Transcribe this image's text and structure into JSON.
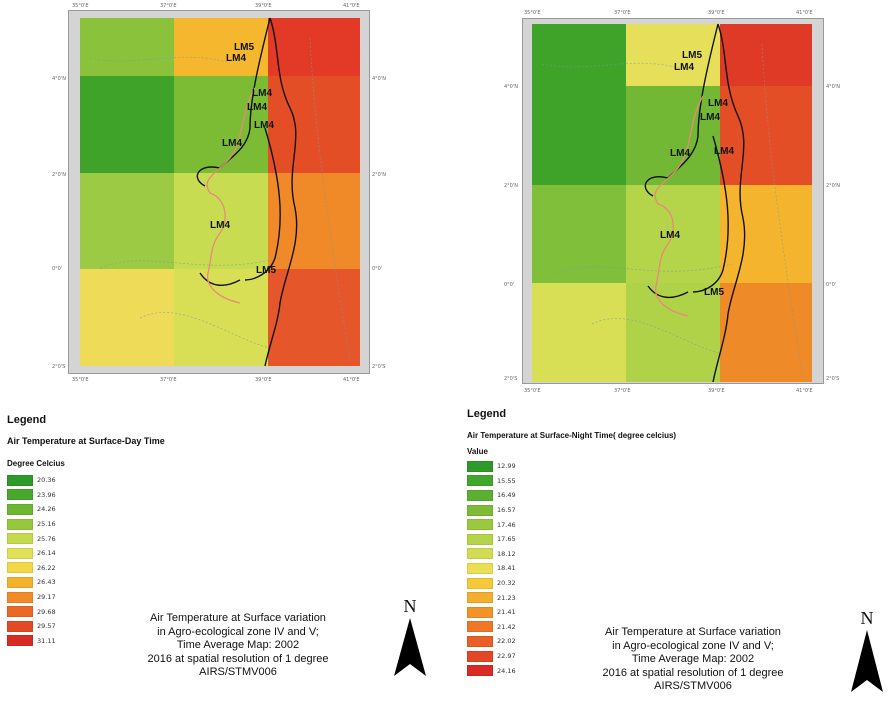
{
  "maps": [
    {
      "id": "day",
      "grid_colors": [
        [
          "#8bc23c",
          "#f4b72e",
          "#e23a27"
        ],
        [
          "#3fa32a",
          "#7cbc35",
          "#e44e27"
        ],
        [
          "#9cca44",
          "#c8dc52",
          "#f08a28"
        ],
        [
          "#eedc58",
          "#d8df54",
          "#e5562a"
        ]
      ],
      "zone_labels": [
        "LM5",
        "LM4",
        "LM4",
        "LM4",
        "LM4",
        "LM4",
        "LM4",
        "LM5"
      ],
      "ticks_top": [
        "35°0'E",
        "37°0'E",
        "39°0'E",
        "41°0'E"
      ],
      "ticks_left": [
        "4°0'N",
        "2°0'N",
        "0°0'",
        "2°0'S",
        "4°0'S"
      ],
      "ticks_right": [
        "4°0'N",
        "2°0'N",
        "0°0'",
        "2°0'S"
      ],
      "ticks_bottom": [
        "35°0'E",
        "37°0'E",
        "39°0'E",
        "41°0'E"
      ],
      "legend": {
        "title": "Legend",
        "subtitle": "Air Temperature at Surface-Day Time",
        "field": "Degree Celcius",
        "items": [
          {
            "value": "20.36",
            "color": "#2e9a2a"
          },
          {
            "value": "23.96",
            "color": "#48a82d"
          },
          {
            "value": "24.26",
            "color": "#6cb634"
          },
          {
            "value": "25.16",
            "color": "#96c83e"
          },
          {
            "value": "25.76",
            "color": "#c2da4c"
          },
          {
            "value": "26.14",
            "color": "#e2e056"
          },
          {
            "value": "26.22",
            "color": "#f2d847"
          },
          {
            "value": "26.43",
            "color": "#f4b22c"
          },
          {
            "value": "29.17",
            "color": "#f18a27"
          },
          {
            "value": "29.68",
            "color": "#ea6927"
          },
          {
            "value": "29.57",
            "color": "#e34b26"
          },
          {
            "value": "31.11",
            "color": "#d92a24"
          }
        ]
      },
      "caption": [
        "Air Temperature at Surface  variation",
        "in Agro-ecological zone IV and V;",
        "Time Average  Map: 2002",
        "2016 at spatial resolution of 1 degree",
        "AIRS/STMV006"
      ],
      "north": "N"
    },
    {
      "id": "night",
      "grid_colors": [
        [
          "#3fa32a",
          "#e6df5a",
          "#df3a26"
        ],
        [
          "#3fa32a",
          "#72b834",
          "#e44e27"
        ],
        [
          "#80bf3a",
          "#b4d44a",
          "#f4b42e"
        ],
        [
          "#d8df54",
          "#b0d248",
          "#ef8a28"
        ]
      ],
      "zone_labels": [
        "LM5",
        "LM4",
        "LM4",
        "LM4",
        "LM4",
        "LM4",
        "LM4",
        "LM5"
      ],
      "ticks_top": [
        "35°0'E",
        "37°0'E",
        "39°0'E",
        "41°0'E"
      ],
      "ticks_left": [
        "4°0'N",
        "2°0'N",
        "0°0'",
        "2°0'S"
      ],
      "ticks_right": [
        "4°0'N",
        "2°0'N",
        "0°0'",
        "2°0'S"
      ],
      "ticks_bottom": [
        "35°0'E",
        "37°0'E",
        "39°0'E",
        "41°0'E"
      ],
      "legend": {
        "title": "Legend",
        "subtitle": "Air Temperature at Surface-Night Time( degree celcius)",
        "field": "Value",
        "items": [
          {
            "value": "12.99",
            "color": "#2e9a2a"
          },
          {
            "value": "15.55",
            "color": "#42a52c"
          },
          {
            "value": "16.49",
            "color": "#5cb031"
          },
          {
            "value": "16.57",
            "color": "#7cbc36"
          },
          {
            "value": "17.46",
            "color": "#9ac83f"
          },
          {
            "value": "17.65",
            "color": "#b6d448"
          },
          {
            "value": "18.12",
            "color": "#d2dc52"
          },
          {
            "value": "18.41",
            "color": "#eadf54"
          },
          {
            "value": "20.32",
            "color": "#f4c93a"
          },
          {
            "value": "21.23",
            "color": "#f4ad2d"
          },
          {
            "value": "21.41",
            "color": "#f29329"
          },
          {
            "value": "21.42",
            "color": "#ee7828"
          },
          {
            "value": "22.02",
            "color": "#e85f27"
          },
          {
            "value": "22.97",
            "color": "#e24726"
          },
          {
            "value": "24.16",
            "color": "#d92a24"
          }
        ]
      },
      "caption": [
        "Air Temperature at Surface  variation",
        "in Agro-ecological zone IV and V;",
        "Time Average  Map: 2002",
        "2016 at spatial resolution of 1 degree",
        "AIRS/STMV006"
      ],
      "north": "N"
    }
  ]
}
